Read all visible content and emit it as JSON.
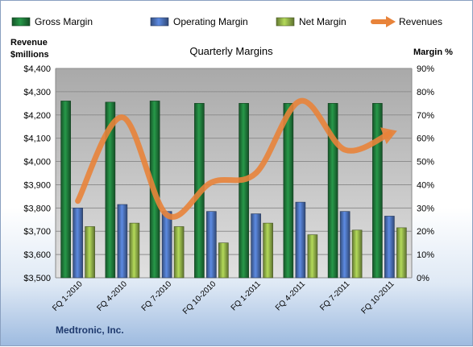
{
  "chart_data": {
    "type": "bar",
    "title": "Quarterly Margins",
    "left_axis_label_line1": "Revenue",
    "left_axis_label_line2": "$millions",
    "right_axis_label": "Margin %",
    "footer": "Medtronic, Inc.",
    "categories": [
      "FQ 1-2010",
      "FQ 4-2010",
      "FQ 7-2010",
      "FQ 10-2010",
      "FQ 1-2011",
      "FQ 4-2011",
      "FQ 7-2011",
      "FQ 10-2011"
    ],
    "left_axis": {
      "min": 3500,
      "max": 4400,
      "step": 100,
      "tick_labels": [
        "$3,500",
        "$3,600",
        "$3,700",
        "$3,800",
        "$3,900",
        "$4,000",
        "$4,100",
        "$4,200",
        "$4,300",
        "$4,400"
      ]
    },
    "right_axis": {
      "min": 0,
      "max": 90,
      "step": 10,
      "tick_labels": [
        "0%",
        "10%",
        "20%",
        "30%",
        "40%",
        "50%",
        "60%",
        "70%",
        "80%",
        "90%"
      ]
    },
    "grid": true,
    "legend_position": "top",
    "series": [
      {
        "name": "Gross Margin",
        "kind": "bar",
        "axis": "right",
        "color": "#1f7a3a",
        "values": [
          76,
          75.5,
          76,
          75,
          75,
          75,
          75,
          75
        ]
      },
      {
        "name": "Operating Margin",
        "kind": "bar",
        "axis": "right",
        "color": "#4a6fb5",
        "values": [
          30,
          31.5,
          28.5,
          28.5,
          27.5,
          32.5,
          28.5,
          26.5
        ]
      },
      {
        "name": "Net Margin",
        "kind": "bar",
        "axis": "right",
        "color": "#8fae48",
        "values": [
          22,
          23.5,
          22,
          15,
          23.5,
          18.5,
          20.5,
          21.5
        ]
      },
      {
        "name": "Revenues",
        "kind": "line",
        "axis": "left",
        "color": "#e8833a",
        "values": [
          3830,
          4190,
          3770,
          3910,
          3950,
          4260,
          4050,
          4120
        ]
      }
    ]
  }
}
